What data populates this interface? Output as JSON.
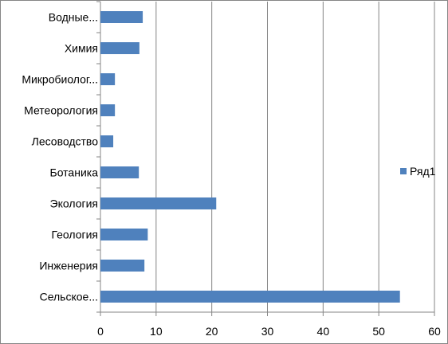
{
  "chart_data": {
    "type": "bar",
    "orientation": "horizontal",
    "title": "",
    "xlabel": "",
    "ylabel": "",
    "categories": [
      "Водные...",
      "Химия",
      "Микробиолог...",
      "Метеорология",
      "Лесоводство",
      "Ботаника",
      "Экология",
      "Геология",
      "Инженерия",
      "Сельское..."
    ],
    "series": [
      {
        "name": "Ряд1",
        "color": "#4f81bd",
        "values": [
          7.6,
          7.0,
          2.6,
          2.6,
          2.3,
          6.9,
          20.8,
          8.5,
          7.9,
          53.8
        ]
      }
    ],
    "xlim": [
      0,
      60
    ],
    "x_ticks": [
      "0",
      "10",
      "20",
      "30",
      "40",
      "50",
      "60"
    ],
    "grid": "vertical",
    "legend_position": "right"
  }
}
